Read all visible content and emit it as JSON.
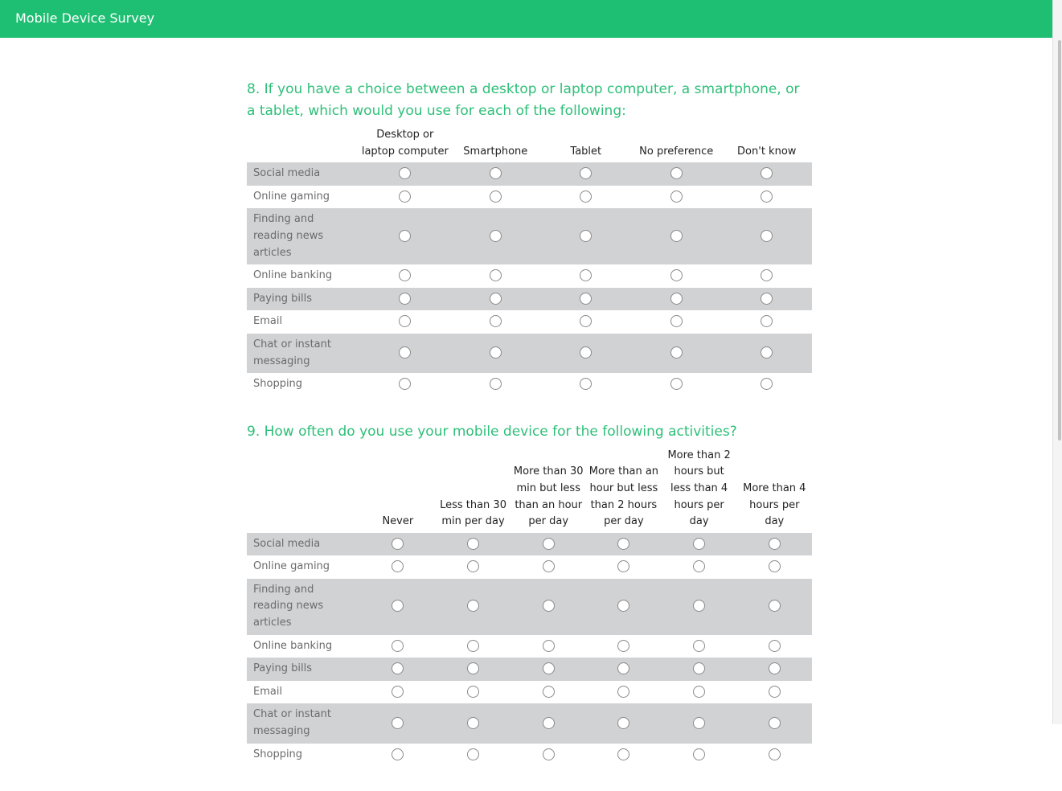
{
  "header": {
    "title": "Mobile Device Survey"
  },
  "questions": [
    {
      "title": "8. If you have a choice between a desktop or laptop computer, a smartphone, or a tablet, which would you use for each of the following:",
      "columns": [
        "Desktop or laptop computer",
        "Smartphone",
        "Tablet",
        "No preference",
        "Don't know"
      ],
      "rows": [
        "Social media",
        "Online gaming",
        "Finding and reading news articles",
        "Online banking",
        "Paying bills",
        "Email",
        "Chat or instant messaging",
        "Shopping"
      ]
    },
    {
      "title": "9. How often do you use your mobile device for the following activities?",
      "columns": [
        "Never",
        "Less than 30 min per day",
        "More than 30 min but less than an hour per day",
        "More than an hour but less than 2 hours per day",
        "More than 2 hours but less than 4 hours per day",
        "More than 4 hours per day"
      ],
      "rows": [
        "Social media",
        "Online gaming",
        "Finding and reading news articles",
        "Online banking",
        "Paying bills",
        "Email",
        "Chat or instant messaging",
        "Shopping"
      ]
    }
  ]
}
